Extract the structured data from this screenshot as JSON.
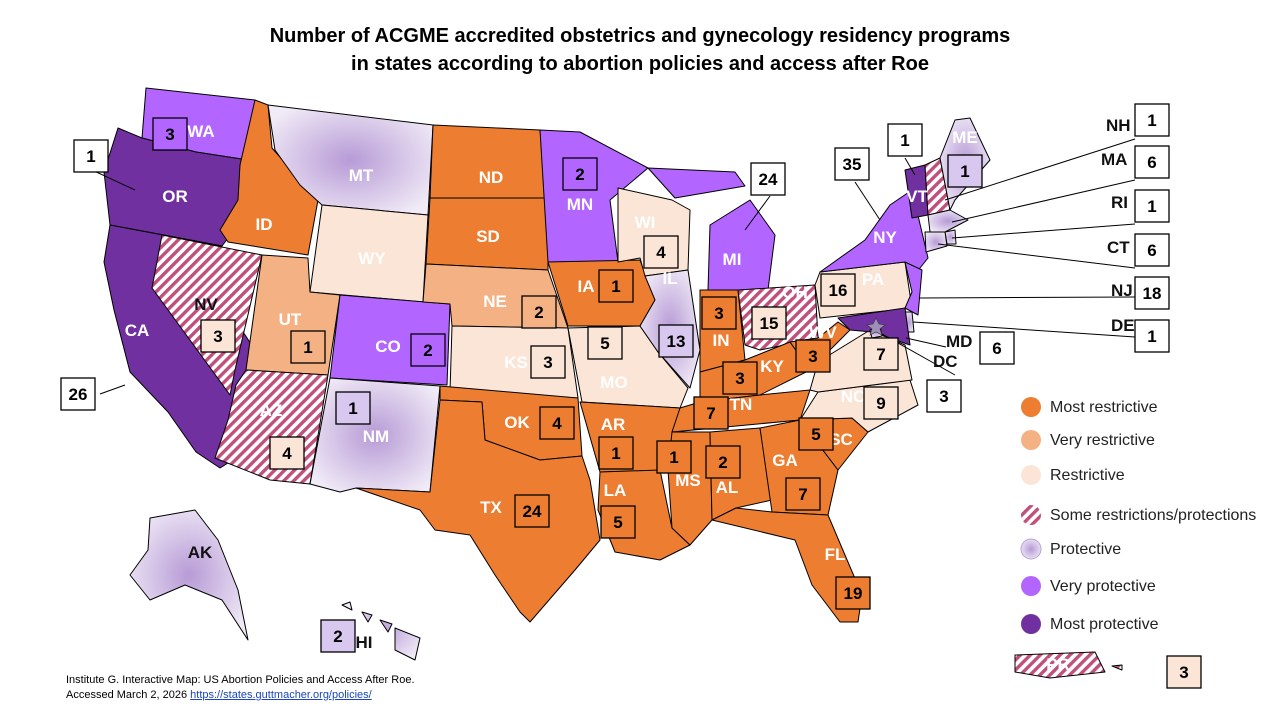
{
  "title": {
    "line1": "Number of ACGME accredited obstetrics and gynecology residency programs",
    "line2": "in states according to abortion policies and access after Roe"
  },
  "colors": {
    "most_restrictive": "#ed7d31",
    "very_restrictive": "#f4b183",
    "restrictive": "#fbe5d6",
    "some_restrictions_protections": "#d9809f",
    "protective": "#c9b8e0",
    "very_protective": "#b266ff",
    "most_protective": "#7030a0"
  },
  "legend": [
    {
      "key": "most_restrictive",
      "label": "Most restrictive"
    },
    {
      "key": "very_restrictive",
      "label": "Very restrictive"
    },
    {
      "key": "restrictive",
      "label": "Restrictive"
    },
    {
      "key": "some_restrictions_protections",
      "label": "Some restrictions/protections"
    },
    {
      "key": "protective",
      "label": "Protective"
    },
    {
      "key": "very_protective",
      "label": "Very protective"
    },
    {
      "key": "most_protective",
      "label": "Most protective"
    }
  ],
  "states": [
    {
      "abbr": "WA",
      "category": "very_protective",
      "programs": 3
    },
    {
      "abbr": "OR",
      "category": "most_protective",
      "programs": 1
    },
    {
      "abbr": "CA",
      "category": "most_protective",
      "programs": 26
    },
    {
      "abbr": "NV",
      "category": "some_restrictions_protections",
      "programs": 3
    },
    {
      "abbr": "ID",
      "category": "most_restrictive",
      "programs": null
    },
    {
      "abbr": "MT",
      "category": "protective",
      "programs": null
    },
    {
      "abbr": "WY",
      "category": "restrictive",
      "programs": null
    },
    {
      "abbr": "UT",
      "category": "very_restrictive",
      "programs": 1
    },
    {
      "abbr": "AZ",
      "category": "some_restrictions_protections",
      "programs": 4
    },
    {
      "abbr": "CO",
      "category": "very_protective",
      "programs": 2
    },
    {
      "abbr": "NM",
      "category": "protective",
      "programs": 1
    },
    {
      "abbr": "ND",
      "category": "most_restrictive",
      "programs": null
    },
    {
      "abbr": "SD",
      "category": "most_restrictive",
      "programs": null
    },
    {
      "abbr": "NE",
      "category": "very_restrictive",
      "programs": 2
    },
    {
      "abbr": "KS",
      "category": "restrictive",
      "programs": 3
    },
    {
      "abbr": "OK",
      "category": "most_restrictive",
      "programs": 4
    },
    {
      "abbr": "TX",
      "category": "most_restrictive",
      "programs": 24
    },
    {
      "abbr": "MN",
      "category": "very_protective",
      "programs": 2
    },
    {
      "abbr": "IA",
      "category": "most_restrictive",
      "programs": 1
    },
    {
      "abbr": "MO",
      "category": "restrictive",
      "programs": 5
    },
    {
      "abbr": "AR",
      "category": "most_restrictive",
      "programs": 1
    },
    {
      "abbr": "LA",
      "category": "most_restrictive",
      "programs": 5
    },
    {
      "abbr": "WI",
      "category": "restrictive",
      "programs": 4
    },
    {
      "abbr": "IL",
      "category": "protective",
      "programs": 13
    },
    {
      "abbr": "MI",
      "category": "very_protective",
      "programs": 24
    },
    {
      "abbr": "IN",
      "category": "most_restrictive",
      "programs": 3
    },
    {
      "abbr": "OH",
      "category": "some_restrictions_protections",
      "programs": 15
    },
    {
      "abbr": "KY",
      "category": "most_restrictive",
      "programs": 3
    },
    {
      "abbr": "TN",
      "category": "most_restrictive",
      "programs": 7
    },
    {
      "abbr": "MS",
      "category": "most_restrictive",
      "programs": 1
    },
    {
      "abbr": "AL",
      "category": "most_restrictive",
      "programs": 2
    },
    {
      "abbr": "GA",
      "category": "most_restrictive",
      "programs": 7
    },
    {
      "abbr": "FL",
      "category": "most_restrictive",
      "programs": 19
    },
    {
      "abbr": "SC",
      "category": "most_restrictive",
      "programs": 5
    },
    {
      "abbr": "NC",
      "category": "restrictive",
      "programs": 9
    },
    {
      "abbr": "VA",
      "category": "restrictive",
      "programs": 7
    },
    {
      "abbr": "WV",
      "category": "most_restrictive",
      "programs": 3
    },
    {
      "abbr": "PA",
      "category": "restrictive",
      "programs": 16
    },
    {
      "abbr": "NY",
      "category": "very_protective",
      "programs": 35
    },
    {
      "abbr": "VT",
      "category": "most_protective",
      "programs": 1
    },
    {
      "abbr": "NH",
      "category": "some_restrictions_protections",
      "programs": 1
    },
    {
      "abbr": "ME",
      "category": "protective",
      "programs": 1
    },
    {
      "abbr": "MA",
      "category": "protective",
      "programs": 6
    },
    {
      "abbr": "RI",
      "category": "protective",
      "programs": 1
    },
    {
      "abbr": "CT",
      "category": "protective",
      "programs": 6
    },
    {
      "abbr": "NJ",
      "category": "very_protective",
      "programs": 18
    },
    {
      "abbr": "DE",
      "category": "protective",
      "programs": 1
    },
    {
      "abbr": "MD",
      "category": "most_protective",
      "programs": 6
    },
    {
      "abbr": "DC",
      "category": "protective",
      "programs": 3
    },
    {
      "abbr": "AK",
      "category": "protective",
      "programs": null
    },
    {
      "abbr": "HI",
      "category": "protective",
      "programs": 2
    },
    {
      "abbr": "PR",
      "category": "some_restrictions_protections",
      "programs": 3
    }
  ],
  "source": {
    "line1": "Institute G. Interactive Map: US Abortion Policies and Access After Roe.",
    "line2_prefix": "Accessed March 2, 2026",
    "link_text": "https://states.guttmacher.org/policies/"
  }
}
